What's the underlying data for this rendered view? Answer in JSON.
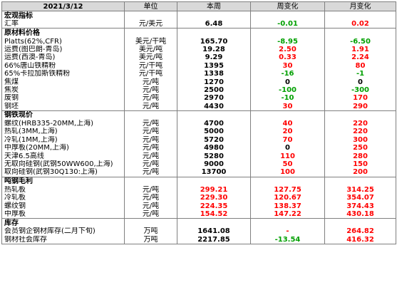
{
  "header": {
    "date": "2021/3/12",
    "unit": "单位",
    "current": "本周",
    "wow": "周变化",
    "mom": "月变化"
  },
  "sections": [
    {
      "title": "宏观指标",
      "rows": [
        {
          "name": "汇率",
          "unit": "元/美元",
          "value": "6.48",
          "wow": "-0.01",
          "wow_color": "#00a000",
          "mom": "0.02",
          "mom_color": "#ff0000"
        }
      ]
    },
    {
      "title": "原材料价格",
      "rows": [
        {
          "name": "Platts(62%,CFR)",
          "unit": "美元/干吨",
          "value": "165.70",
          "wow": "-8.95",
          "wow_color": "#00a000",
          "mom": "-6.50",
          "mom_color": "#00a000"
        },
        {
          "name": "运费(图巴朗-青岛)",
          "unit": "美元/吨",
          "value": "19.28",
          "wow": "2.50",
          "wow_color": "#ff0000",
          "mom": "1.91",
          "mom_color": "#ff0000"
        },
        {
          "name": "运费(西澳-青岛)",
          "unit": "美元/吨",
          "value": "9.29",
          "wow": "0.33",
          "wow_color": "#ff0000",
          "mom": "2.24",
          "mom_color": "#ff0000"
        },
        {
          "name": "66%唐山铁精粉",
          "unit": "元/干吨",
          "value": "1395",
          "wow": "30",
          "wow_color": "#ff0000",
          "mom": "80",
          "mom_color": "#ff0000"
        },
        {
          "name": "65%卡拉加斯铁精粉",
          "unit": "元/干吨",
          "value": "1338",
          "wow": "-16",
          "wow_color": "#00a000",
          "mom": "-1",
          "mom_color": "#00a000"
        },
        {
          "name": "焦煤",
          "unit": "元/吨",
          "value": "1270",
          "wow": "0",
          "wow_color": "#000000",
          "mom": "0",
          "mom_color": "#000000"
        },
        {
          "name": "焦炭",
          "unit": "元/吨",
          "value": "2500",
          "wow": "-100",
          "wow_color": "#00a000",
          "mom": "-300",
          "mom_color": "#00a000"
        },
        {
          "name": "废钢",
          "unit": "元/吨",
          "value": "2970",
          "wow": "-10",
          "wow_color": "#00a000",
          "mom": "170",
          "mom_color": "#ff0000"
        },
        {
          "name": "钢坯",
          "unit": "元/吨",
          "value": "4430",
          "wow": "30",
          "wow_color": "#ff0000",
          "mom": "290",
          "mom_color": "#ff0000"
        }
      ]
    },
    {
      "title": "钢铁现价",
      "rows": [
        {
          "name": "螺纹(HRB335-20MM,上海)",
          "unit": "元/吨",
          "value": "4700",
          "wow": "40",
          "wow_color": "#ff0000",
          "mom": "220",
          "mom_color": "#ff0000"
        },
        {
          "name": "热轧(3MM,上海)",
          "unit": "元/吨",
          "value": "5000",
          "wow": "20",
          "wow_color": "#ff0000",
          "mom": "220",
          "mom_color": "#ff0000"
        },
        {
          "name": "冷轧(1MM,上海)",
          "unit": "元/吨",
          "value": "5720",
          "wow": "70",
          "wow_color": "#ff0000",
          "mom": "300",
          "mom_color": "#ff0000"
        },
        {
          "name": "中厚板(20MM,上海)",
          "unit": "元/吨",
          "value": "4980",
          "wow": "0",
          "wow_color": "#000000",
          "mom": "250",
          "mom_color": "#ff0000"
        },
        {
          "name": "天津6.5高线",
          "unit": "元/吨",
          "value": "5280",
          "wow": "110",
          "wow_color": "#ff0000",
          "mom": "280",
          "mom_color": "#ff0000"
        },
        {
          "name": "无取向硅钢(武钢50WW600,上海)",
          "unit": "元/吨",
          "value": "9000",
          "wow": "50",
          "wow_color": "#ff0000",
          "mom": "150",
          "mom_color": "#ff0000"
        },
        {
          "name": "取向硅钢(武钢30Q130:上海)",
          "unit": "元/吨",
          "value": "13700",
          "wow": "100",
          "wow_color": "#ff0000",
          "mom": "200",
          "mom_color": "#ff0000"
        }
      ]
    },
    {
      "title": "吨钢毛利",
      "rows": [
        {
          "name": "热轧板",
          "unit": "元/吨",
          "value": "299.21",
          "value_color": "#ff0000",
          "wow": "127.75",
          "wow_color": "#ff0000",
          "mom": "314.25",
          "mom_color": "#ff0000"
        },
        {
          "name": "冷轧板",
          "unit": "元/吨",
          "value": "229.30",
          "value_color": "#ff0000",
          "wow": "120.67",
          "wow_color": "#ff0000",
          "mom": "354.07",
          "mom_color": "#ff0000"
        },
        {
          "name": "螺纹钢",
          "unit": "元/吨",
          "value": "224.35",
          "value_color": "#ff0000",
          "wow": "138.37",
          "wow_color": "#ff0000",
          "mom": "374.43",
          "mom_color": "#ff0000"
        },
        {
          "name": "中厚板",
          "unit": "元/吨",
          "value": "154.52",
          "value_color": "#ff0000",
          "wow": "147.22",
          "wow_color": "#ff0000",
          "mom": "430.18",
          "mom_color": "#ff0000"
        }
      ]
    },
    {
      "title": "库存",
      "rows": [
        {
          "name": "会员钢企钢材库存(二月下旬)",
          "unit": "万吨",
          "value": "1641.08",
          "wow": "-",
          "wow_color": "#ff0000",
          "mom": "264.82",
          "mom_color": "#ff0000"
        },
        {
          "name": "钢材社会库存",
          "unit": "万吨",
          "value": "2217.85",
          "wow": "-13.54",
          "wow_color": "#00a000",
          "mom": "416.32",
          "mom_color": "#ff0000"
        }
      ]
    }
  ]
}
